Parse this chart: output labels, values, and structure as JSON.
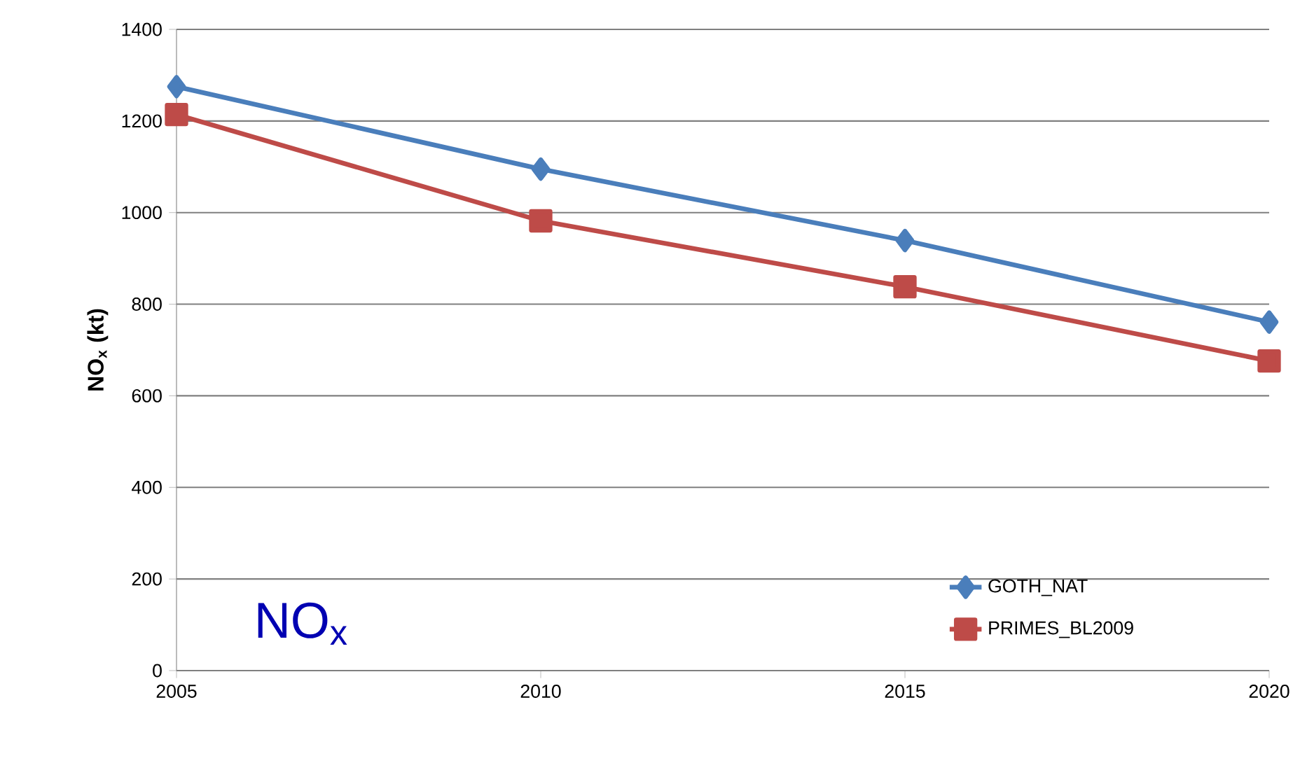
{
  "chart_data": {
    "type": "line",
    "ylabel": "NO$_{x}$ (kt)",
    "annotations": [
      "NO$_{x}$"
    ],
    "categories": [
      "2005",
      "2010",
      "2015",
      "2020"
    ],
    "series": [
      {
        "name": "GOTH_NAT",
        "color": "#4a7ebb",
        "marker": "diamond",
        "values": [
          1275,
          1095,
          939,
          761
        ]
      },
      {
        "name": "PRIMES_BL2009",
        "color": "#be4b48",
        "marker": "square",
        "values": [
          1214,
          982,
          838,
          676
        ]
      }
    ],
    "ylim": [
      0,
      1400
    ],
    "yticks": [
      0,
      200,
      400,
      600,
      800,
      1000,
      1200,
      1400
    ],
    "grid": "y",
    "legend": "bottom right"
  }
}
